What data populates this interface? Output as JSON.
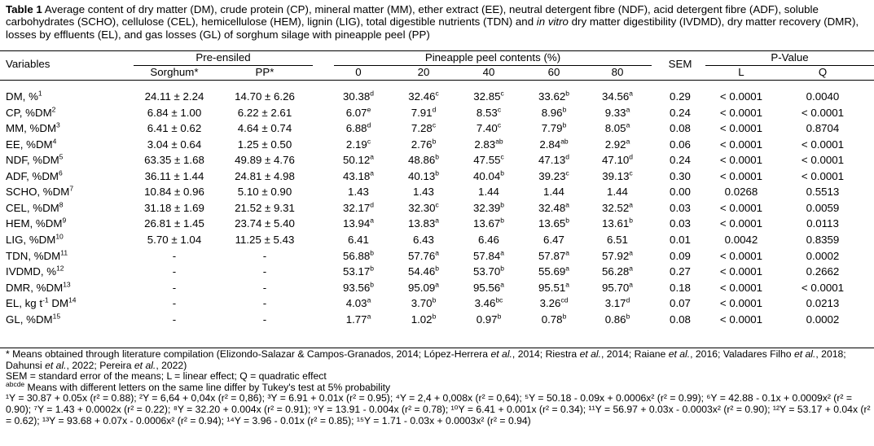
{
  "caption": {
    "label": "Table 1",
    "text_a": " Average content of dry matter (DM), crude protein (CP), mineral matter (MM), ether extract (EE), neutral detergent fibre (NDF), acid detergent fibre (ADF), soluble carbohydrates (SCHO), cellulose (CEL), hemicellulose (HEM), lignin (LIG), total digestible nutrients (TDN) and ",
    "italic": "in vitro",
    "text_b": " dry matter digestibility (IVDMD), dry matter recovery (DMR), losses by effluents (EL), and gas losses (GL) of sorghum silage with pineapple peel (PP)"
  },
  "headers": {
    "variables": "Variables",
    "pre_ensiled": "Pre-ensiled",
    "sorghum": "Sorghum*",
    "pp": "PP*",
    "pineapple": "Pineapple peel contents (%)",
    "levels": [
      "0",
      "20",
      "40",
      "60",
      "80"
    ],
    "sem": "SEM",
    "pvalue": "P-Value",
    "l": "L",
    "q": "Q"
  },
  "rows": [
    {
      "var": "DM, %",
      "vs": "1",
      "sorghum": "24.11 ± 2.24",
      "pp": "14.70 ± 6.26",
      "p0": "30.38",
      "s0": "d",
      "p20": "32.46",
      "s20": "c",
      "p40": "32.85",
      "s40": "c",
      "p60": "33.62",
      "s60": "b",
      "p80": "34.56",
      "s80": "a",
      "sem": "0.29",
      "l": "< 0.0001",
      "q": "0.0040"
    },
    {
      "var": "CP, %DM",
      "vs": "2",
      "sorghum": "6.84 ± 1.00",
      "pp": "6.22 ± 2.61",
      "p0": "6.07",
      "s0": "e",
      "p20": "7.91",
      "s20": "d",
      "p40": "8.53",
      "s40": "c",
      "p60": "8.96",
      "s60": "b",
      "p80": "9.33",
      "s80": "a",
      "sem": "0.24",
      "l": "< 0.0001",
      "q": "< 0.0001"
    },
    {
      "var": "MM, %DM",
      "vs": "3",
      "sorghum": "6.41 ± 0.62",
      "pp": "4.64 ± 0.74",
      "p0": "6.88",
      "s0": "d",
      "p20": "7.28",
      "s20": "c",
      "p40": "7.40",
      "s40": "c",
      "p60": "7.79",
      "s60": "b",
      "p80": "8.05",
      "s80": "a",
      "sem": "0.08",
      "l": "< 0.0001",
      "q": "0.8704"
    },
    {
      "var": "EE, %DM",
      "vs": "4",
      "sorghum": "3.04 ± 0.64",
      "pp": "1.25 ± 0.50",
      "p0": "2.19",
      "s0": "c",
      "p20": "2.76",
      "s20": "b",
      "p40": "2.83",
      "s40": "ab",
      "p60": "2.84",
      "s60": "ab",
      "p80": "2.92",
      "s80": "a",
      "sem": "0.06",
      "l": "< 0.0001",
      "q": "< 0.0001"
    },
    {
      "var": "NDF, %DM",
      "vs": "5",
      "sorghum": "63.35 ± 1.68",
      "pp": "49.89 ± 4.76",
      "p0": "50.12",
      "s0": "a",
      "p20": "48.86",
      "s20": "b",
      "p40": "47.55",
      "s40": "c",
      "p60": "47.13",
      "s60": "d",
      "p80": "47.10",
      "s80": "d",
      "sem": "0.24",
      "l": "< 0.0001",
      "q": "< 0.0001"
    },
    {
      "var": "ADF, %DM",
      "vs": "6",
      "sorghum": "36.11 ± 1.44",
      "pp": "24.81 ± 4.98",
      "p0": "43.18",
      "s0": "a",
      "p20": "40.13",
      "s20": "b",
      "p40": "40.04",
      "s40": "b",
      "p60": "39.23",
      "s60": "c",
      "p80": "39.13",
      "s80": "c",
      "sem": "0.30",
      "l": "< 0.0001",
      "q": "< 0.0001"
    },
    {
      "var": "SCHO, %DM",
      "vs": "7",
      "sorghum": "10.84 ± 0.96",
      "pp": "5.10 ± 0.90",
      "p0": "1.43",
      "s0": "",
      "p20": "1.43",
      "s20": "",
      "p40": "1.44",
      "s40": "",
      "p60": "1.44",
      "s60": "",
      "p80": "1.44",
      "s80": "",
      "sem": "0.00",
      "l": "0.0268",
      "q": "0.5513"
    },
    {
      "var": "CEL, %DM",
      "vs": "8",
      "sorghum": "31.18 ± 1.69",
      "pp": "21.52 ± 9.31",
      "p0": "32.17",
      "s0": "d",
      "p20": "32.30",
      "s20": "c",
      "p40": "32.39",
      "s40": "b",
      "p60": "32.48",
      "s60": "a",
      "p80": "32.52",
      "s80": "a",
      "sem": "0.03",
      "l": "< 0.0001",
      "q": "0.0059"
    },
    {
      "var": "HEM, %DM",
      "vs": "9",
      "sorghum": "26.81 ± 1.45",
      "pp": "23.74 ± 5.40",
      "p0": "13.94",
      "s0": "a",
      "p20": "13.83",
      "s20": "a",
      "p40": "13.67",
      "s40": "b",
      "p60": "13.65",
      "s60": "b",
      "p80": "13.61",
      "s80": "b",
      "sem": "0.03",
      "l": "< 0.0001",
      "q": "0.0113"
    },
    {
      "var": "LIG, %DM",
      "vs": "10",
      "sorghum": "5.70 ± 1.04",
      "pp": "11.25 ± 5.43",
      "p0": "6.41",
      "s0": "",
      "p20": "6.43",
      "s20": "",
      "p40": "6.46",
      "s40": "",
      "p60": "6.47",
      "s60": "",
      "p80": "6.51",
      "s80": "",
      "sem": "0.01",
      "l": "0.0042",
      "q": "0.8359"
    },
    {
      "var": "TDN, %DM",
      "vs": "11",
      "sorghum": "-",
      "pp": "-",
      "p0": "56.88",
      "s0": "b",
      "p20": "57.76",
      "s20": "a",
      "p40": "57.84",
      "s40": "a",
      "p60": "57.87",
      "s60": "a",
      "p80": "57.92",
      "s80": "a",
      "sem": "0.09",
      "l": "< 0.0001",
      "q": "0.0002"
    },
    {
      "var": "IVDMD, %",
      "vs": "12",
      "sorghum": "-",
      "pp": "-",
      "p0": "53.17",
      "s0": "b",
      "p20": "54.46",
      "s20": "b",
      "p40": "53.70",
      "s40": "b",
      "p60": "55.69",
      "s60": "a",
      "p80": "56.28",
      "s80": "a",
      "sem": "0.27",
      "l": "< 0.0001",
      "q": "0.2662"
    },
    {
      "var": "DMR, %DM",
      "vs": "13",
      "sorghum": "-",
      "pp": "-",
      "p0": "93.56",
      "s0": "b",
      "p20": "95.09",
      "s20": "a",
      "p40": "95.56",
      "s40": "a",
      "p60": "95.51",
      "s60": "a",
      "p80": "95.70",
      "s80": "a",
      "sem": "0.18",
      "l": "< 0.0001",
      "q": "< 0.0001"
    },
    {
      "var": "EL, kg t",
      "vs": "-1",
      "var2": " DM",
      "vs2": "14",
      "sorghum": "-",
      "pp": "-",
      "p0": "4.03",
      "s0": "a",
      "p20": "3.70",
      "s20": "b",
      "p40": "3.46",
      "s40": "bc",
      "p60": "3.26",
      "s60": "cd",
      "p80": "3.17",
      "s80": "d",
      "sem": "0.07",
      "l": "< 0.0001",
      "q": "0.0213"
    },
    {
      "var": "GL, %DM",
      "vs": "15",
      "sorghum": "-",
      "pp": "-",
      "p0": "1.77",
      "s0": "a",
      "p20": "1.02",
      "s20": "b",
      "p40": "0.97",
      "s40": "b",
      "p60": "0.78",
      "s60": "b",
      "p80": "0.86",
      "s80": "b",
      "sem": "0.08",
      "l": "< 0.0001",
      "q": "0.0002"
    }
  ],
  "notes": {
    "n1_a": "* Means obtained through literature compilation (Elizondo-Salazar & Campos-Granados, 2014; López-Herrera ",
    "n1_i1": "et al.",
    "n1_b": ", 2014; Riestra ",
    "n1_i2": "et al.",
    "n1_c": ", 2014; Raiane ",
    "n1_i3": "et al.",
    "n1_d": ", 2016; Valadares Filho ",
    "n1_i4": "et al.",
    "n1_e": ", 2018; Dahunsi ",
    "n1_i5": "et al.",
    "n1_f": ", 2022; Pereira ",
    "n1_i6": "et al.",
    "n1_g": ", 2022)",
    "n2": "SEM = standard error of the means; L = linear effect; Q = quadratic effect",
    "n3_sup": "abcde",
    "n3": " Means with different letters on the same line differ by Tukey's test at 5% probability",
    "eq": "¹Y = 30.87 + 0.05x (r² = 0.88); ²Y = 6,64 + 0,04x (r² = 0,86); ³Y = 6.91 + 0.01x (r² = 0.95); ⁴Y = 2,4 + 0,008x (r² = 0,64); ⁵Y = 50.18 - 0.09x + 0.0006x² (r² = 0.99); ⁶Y = 42.88 - 0.1x + 0.0009x² (r² = 0.90); ⁷Y = 1.43 + 0.0002x (r² = 0.22); ⁸Y = 32.20 + 0.004x (r² = 0.91); ⁹Y = 13.91 - 0.004x (r² = 0.78); ¹⁰Y = 6.41 + 0.001x (r² = 0.34); ¹¹Y = 56.97 + 0.03x - 0.0003x² (r² = 0.90); ¹²Y = 53.17 + 0.04x (r² = 0.62); ¹³Y = 93.68 + 0.07x - 0.0006x² (r² = 0.94); ¹⁴Y = 3.96 - 0.01x (r² = 0.85); ¹⁵Y = 1.71 - 0.03x + 0.0003x² (r² = 0.94)"
  }
}
